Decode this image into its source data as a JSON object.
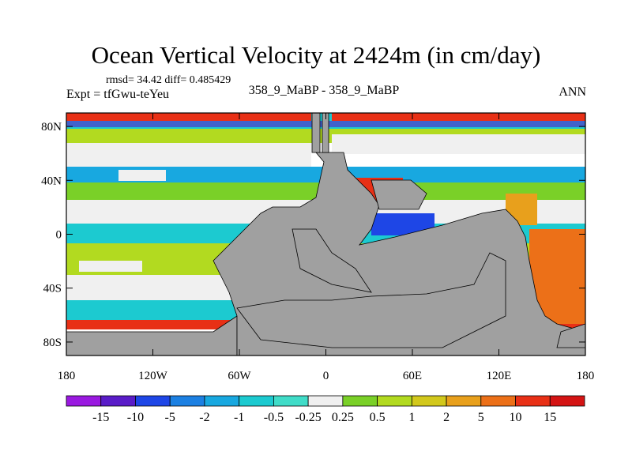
{
  "chart_data": {
    "type": "heatmap",
    "title": "Ocean Vertical Velocity at 2424m (in cm/day)",
    "left_annotation_top": "rmsd= 34.42 diff= 0.485429",
    "left_annotation": "Expt = tfGwu-teYeu",
    "center_annotation": "358_9_MaBP - 358_9_MaBP",
    "right_annotation": "ANN",
    "x_ticks": [
      "180",
      "120W",
      "60W",
      "0",
      "60E",
      "120E",
      "180"
    ],
    "x_tick_values": [
      -180,
      -120,
      -60,
      0,
      60,
      120,
      180
    ],
    "y_ticks": [
      "80N",
      "40N",
      "0",
      "40S",
      "80S"
    ],
    "y_tick_values": [
      80,
      40,
      0,
      -40,
      -80
    ],
    "xlim": [
      -180,
      180
    ],
    "ylim": [
      -90,
      90
    ],
    "land_color": "#a0a0a0",
    "colorbar_labels": [
      "-15",
      "-10",
      "-5",
      "-2",
      "-1",
      "-0.5",
      "-0.25",
      "0.25",
      "0.5",
      "1",
      "2",
      "5",
      "10",
      "15"
    ],
    "colorbar_colors": [
      "#9a19e0",
      "#5a1cc8",
      "#1e46e6",
      "#1c80e2",
      "#18a8e0",
      "#1ccad0",
      "#40dcc8",
      "#f0f0f0",
      "#7ad028",
      "#b2da20",
      "#d2c81c",
      "#e8a01c",
      "#ec7018",
      "#e83016",
      "#d41414"
    ]
  }
}
